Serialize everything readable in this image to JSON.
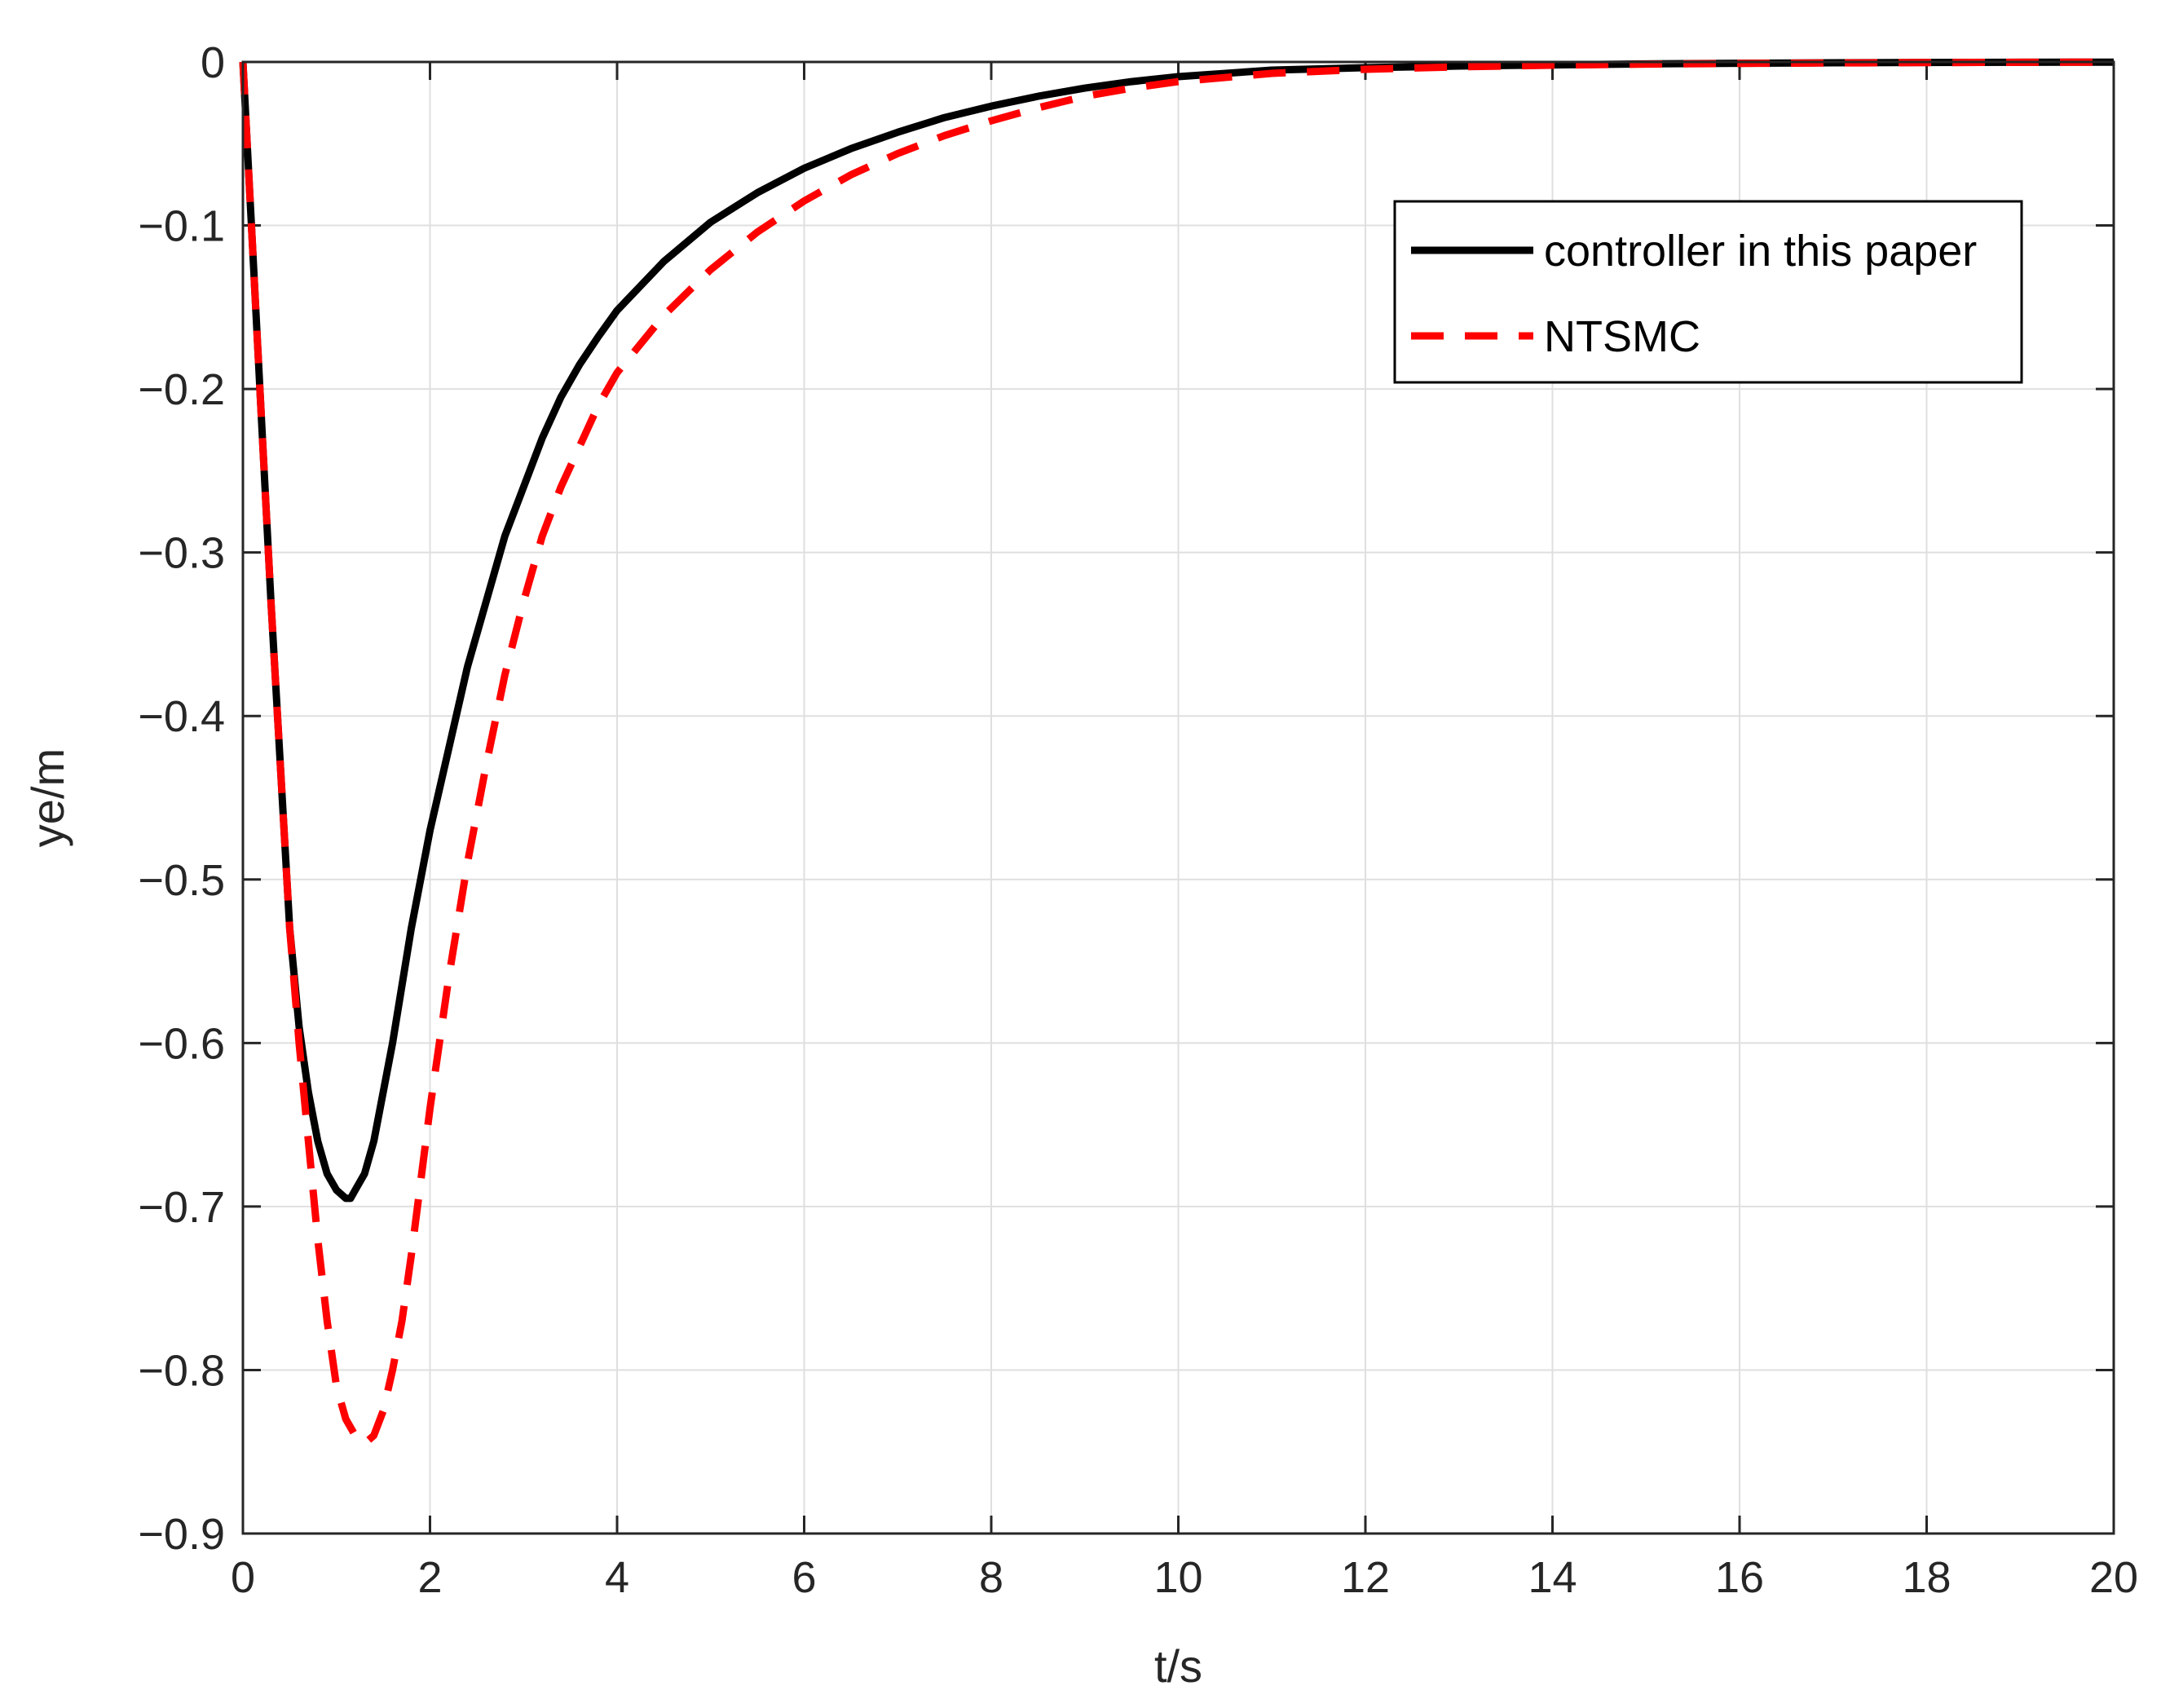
{
  "chart_data": {
    "type": "line",
    "xlabel": "t/s",
    "ylabel": "ye/m",
    "xlim": [
      0,
      20
    ],
    "ylim": [
      -0.9,
      0
    ],
    "x_ticks": [
      0,
      2,
      4,
      6,
      8,
      10,
      12,
      14,
      16,
      18,
      20
    ],
    "x_tick_labels": [
      "0",
      "2",
      "4",
      "6",
      "8",
      "10",
      "12",
      "14",
      "16",
      "18",
      "20"
    ],
    "y_ticks": [
      0,
      -0.1,
      -0.2,
      -0.3,
      -0.4,
      -0.5,
      -0.6,
      -0.7,
      -0.8,
      -0.9
    ],
    "y_tick_labels": [
      "0",
      "−0.1",
      "−0.2",
      "−0.3",
      "−0.4",
      "−0.5",
      "−0.6",
      "−0.7",
      "−0.8",
      "−0.9"
    ],
    "grid": true,
    "legend_position": "top-right",
    "series": [
      {
        "name": "controller in this paper",
        "color": "#000000",
        "style": "solid",
        "x": [
          0,
          0.1,
          0.2,
          0.3,
          0.4,
          0.5,
          0.6,
          0.7,
          0.8,
          0.9,
          1.0,
          1.1,
          1.15,
          1.2,
          1.3,
          1.4,
          1.5,
          1.6,
          1.8,
          2.0,
          2.2,
          2.4,
          2.6,
          2.8,
          3.0,
          3.2,
          3.4,
          3.6,
          3.8,
          4.0,
          4.5,
          5.0,
          5.5,
          6.0,
          6.5,
          7.0,
          7.5,
          8.0,
          8.5,
          9.0,
          9.5,
          10.0,
          11.0,
          12.0,
          13.0,
          14.0,
          15.0,
          16.0,
          17.0,
          18.0,
          19.0,
          20.0
        ],
        "y": [
          0,
          -0.11,
          -0.22,
          -0.33,
          -0.43,
          -0.53,
          -0.59,
          -0.63,
          -0.66,
          -0.68,
          -0.69,
          -0.695,
          -0.695,
          -0.69,
          -0.68,
          -0.66,
          -0.63,
          -0.6,
          -0.53,
          -0.47,
          -0.42,
          -0.37,
          -0.33,
          -0.29,
          -0.26,
          -0.23,
          -0.205,
          -0.185,
          -0.168,
          -0.152,
          -0.122,
          -0.098,
          -0.08,
          -0.065,
          -0.053,
          -0.043,
          -0.034,
          -0.027,
          -0.021,
          -0.016,
          -0.012,
          -0.009,
          -0.005,
          -0.0035,
          -0.0025,
          -0.0018,
          -0.0012,
          -0.0008,
          -0.0005,
          -0.0003,
          -0.0002,
          -0.0001
        ]
      },
      {
        "name": "NTSMC",
        "color": "#ff0000",
        "style": "dashed",
        "x": [
          0,
          0.1,
          0.2,
          0.3,
          0.4,
          0.5,
          0.6,
          0.7,
          0.8,
          0.9,
          1.0,
          1.1,
          1.2,
          1.3,
          1.4,
          1.5,
          1.6,
          1.7,
          1.8,
          2.0,
          2.2,
          2.4,
          2.6,
          2.8,
          3.0,
          3.2,
          3.4,
          3.6,
          3.8,
          4.0,
          4.5,
          5.0,
          5.5,
          6.0,
          6.5,
          7.0,
          7.5,
          8.0,
          8.5,
          9.0,
          9.5,
          10.0,
          11.0,
          12.0,
          13.0,
          14.0,
          15.0,
          16.0,
          17.0,
          18.0,
          19.0,
          20.0
        ],
        "y": [
          0,
          -0.11,
          -0.22,
          -0.33,
          -0.43,
          -0.53,
          -0.6,
          -0.66,
          -0.72,
          -0.77,
          -0.81,
          -0.83,
          -0.84,
          -0.845,
          -0.84,
          -0.825,
          -0.8,
          -0.77,
          -0.73,
          -0.64,
          -0.56,
          -0.49,
          -0.43,
          -0.375,
          -0.33,
          -0.29,
          -0.26,
          -0.235,
          -0.21,
          -0.19,
          -0.155,
          -0.127,
          -0.104,
          -0.085,
          -0.069,
          -0.056,
          -0.045,
          -0.036,
          -0.028,
          -0.021,
          -0.016,
          -0.012,
          -0.007,
          -0.0045,
          -0.003,
          -0.002,
          -0.0013,
          -0.0009,
          -0.0006,
          -0.0004,
          -0.0002,
          -0.0001
        ]
      }
    ]
  }
}
